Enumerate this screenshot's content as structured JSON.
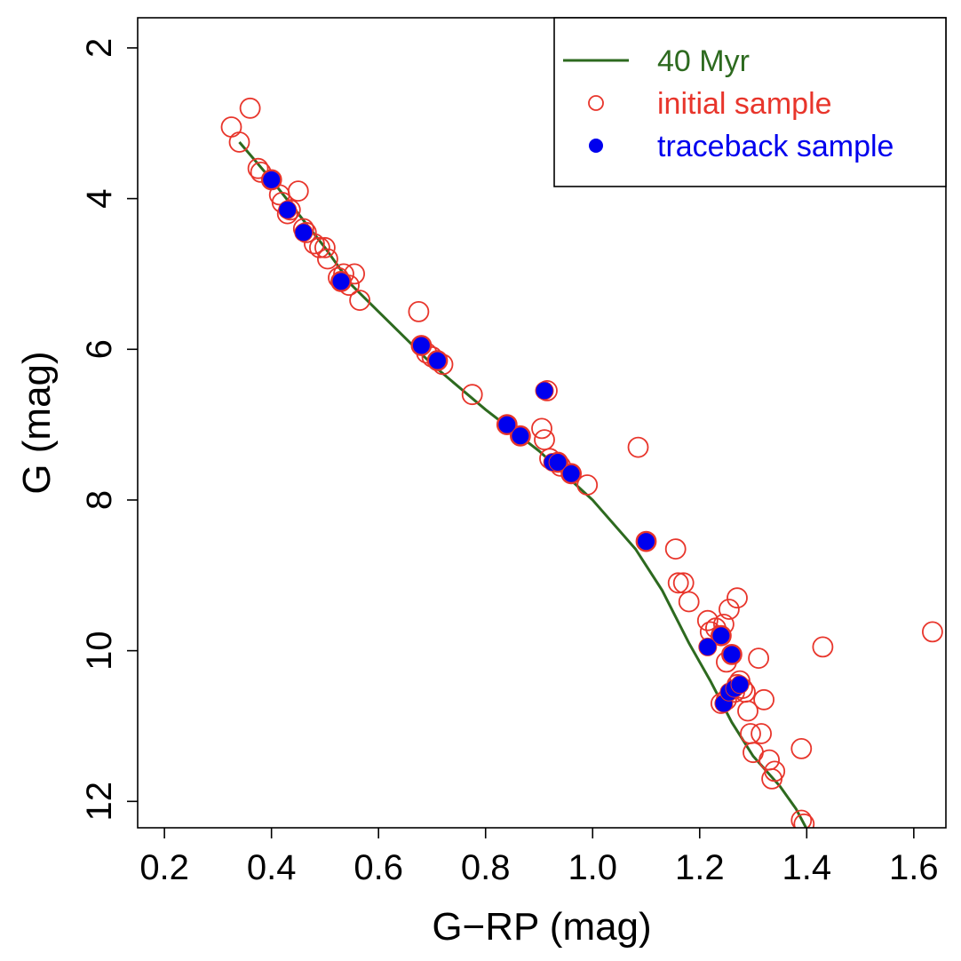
{
  "chart_data": {
    "type": "scatter",
    "xlabel": "G−RP (mag)",
    "ylabel": "G (mag)",
    "xlim": [
      0.15,
      1.66
    ],
    "ylim": [
      12.35,
      1.6
    ],
    "y_inverted": true,
    "xticks": [
      "0.2",
      "0.4",
      "0.6",
      "0.8",
      "1.0",
      "1.2",
      "1.4",
      "1.6"
    ],
    "yticks": [
      "2",
      "4",
      "6",
      "8",
      "10",
      "12"
    ],
    "grid": false,
    "legend": {
      "position": "top-right",
      "entries": [
        {
          "label": "40 Myr",
          "marker": "line",
          "color": "#2d6a1f"
        },
        {
          "label": "initial sample",
          "marker": "open-circle",
          "color": "#e8352b"
        },
        {
          "label": "traceback sample",
          "marker": "filled-circle",
          "color": "#0000ee"
        }
      ]
    },
    "series": [
      {
        "name": "40 Myr",
        "kind": "line",
        "color": "#2d6a1f",
        "points": [
          [
            0.34,
            3.25
          ],
          [
            0.4,
            3.75
          ],
          [
            0.45,
            4.2
          ],
          [
            0.5,
            4.65
          ],
          [
            0.55,
            5.15
          ],
          [
            0.6,
            5.5
          ],
          [
            0.7,
            6.2
          ],
          [
            0.8,
            6.8
          ],
          [
            0.9,
            7.35
          ],
          [
            1.0,
            8.0
          ],
          [
            1.08,
            8.65
          ],
          [
            1.13,
            9.2
          ],
          [
            1.18,
            9.9
          ],
          [
            1.22,
            10.4
          ],
          [
            1.26,
            10.95
          ],
          [
            1.3,
            11.4
          ],
          [
            1.35,
            11.8
          ],
          [
            1.38,
            12.1
          ],
          [
            1.41,
            12.5
          ]
        ]
      },
      {
        "name": "initial sample",
        "kind": "open-circle",
        "color": "#e8352b",
        "points": [
          [
            0.325,
            3.05
          ],
          [
            0.36,
            2.8
          ],
          [
            0.34,
            3.25
          ],
          [
            0.375,
            3.6
          ],
          [
            0.38,
            3.65
          ],
          [
            0.4,
            3.75
          ],
          [
            0.415,
            3.95
          ],
          [
            0.42,
            4.05
          ],
          [
            0.435,
            4.15
          ],
          [
            0.45,
            3.9
          ],
          [
            0.43,
            4.2
          ],
          [
            0.46,
            4.4
          ],
          [
            0.465,
            4.45
          ],
          [
            0.48,
            4.6
          ],
          [
            0.49,
            4.65
          ],
          [
            0.5,
            4.65
          ],
          [
            0.505,
            4.8
          ],
          [
            0.525,
            5.05
          ],
          [
            0.53,
            5.1
          ],
          [
            0.535,
            5.0
          ],
          [
            0.545,
            5.15
          ],
          [
            0.555,
            5.0
          ],
          [
            0.565,
            5.35
          ],
          [
            0.675,
            5.5
          ],
          [
            0.68,
            5.95
          ],
          [
            0.69,
            6.05
          ],
          [
            0.7,
            6.1
          ],
          [
            0.71,
            6.15
          ],
          [
            0.72,
            6.2
          ],
          [
            0.775,
            6.6
          ],
          [
            0.905,
            7.05
          ],
          [
            0.91,
            7.2
          ],
          [
            0.915,
            6.55
          ],
          [
            0.84,
            7.0
          ],
          [
            0.865,
            7.15
          ],
          [
            0.92,
            7.45
          ],
          [
            0.935,
            7.5
          ],
          [
            0.94,
            7.55
          ],
          [
            0.96,
            7.65
          ],
          [
            0.99,
            7.8
          ],
          [
            1.085,
            7.3
          ],
          [
            1.1,
            8.55
          ],
          [
            1.155,
            8.65
          ],
          [
            1.16,
            9.1
          ],
          [
            1.17,
            9.1
          ],
          [
            1.18,
            9.35
          ],
          [
            1.215,
            9.6
          ],
          [
            1.22,
            9.75
          ],
          [
            1.23,
            9.7
          ],
          [
            1.24,
            9.8
          ],
          [
            1.245,
            9.65
          ],
          [
            1.255,
            9.45
          ],
          [
            1.27,
            9.3
          ],
          [
            1.25,
            10.15
          ],
          [
            1.26,
            10.05
          ],
          [
            1.265,
            10.55
          ],
          [
            1.27,
            10.45
          ],
          [
            1.275,
            10.4
          ],
          [
            1.28,
            10.5
          ],
          [
            1.285,
            10.55
          ],
          [
            1.29,
            10.8
          ],
          [
            1.295,
            11.1
          ],
          [
            1.3,
            11.35
          ],
          [
            1.31,
            10.1
          ],
          [
            1.315,
            11.1
          ],
          [
            1.32,
            10.65
          ],
          [
            1.33,
            11.45
          ],
          [
            1.335,
            11.7
          ],
          [
            1.34,
            11.6
          ],
          [
            1.39,
            11.3
          ],
          [
            1.39,
            12.25
          ],
          [
            1.395,
            12.3
          ],
          [
            1.43,
            9.95
          ],
          [
            1.635,
            9.75
          ],
          [
            1.24,
            10.7
          ],
          [
            1.25,
            10.65
          ]
        ]
      },
      {
        "name": "traceback sample",
        "kind": "filled-circle",
        "color": "#0000ee",
        "points": [
          [
            0.4,
            3.75
          ],
          [
            0.43,
            4.15
          ],
          [
            0.46,
            4.45
          ],
          [
            0.53,
            5.1
          ],
          [
            0.68,
            5.95
          ],
          [
            0.71,
            6.15
          ],
          [
            0.91,
            6.55
          ],
          [
            0.84,
            7.0
          ],
          [
            0.865,
            7.15
          ],
          [
            0.925,
            7.5
          ],
          [
            0.935,
            7.5
          ],
          [
            0.96,
            7.65
          ],
          [
            1.1,
            8.55
          ],
          [
            1.215,
            9.95
          ],
          [
            1.24,
            9.8
          ],
          [
            1.26,
            10.05
          ],
          [
            1.245,
            10.7
          ],
          [
            1.255,
            10.55
          ],
          [
            1.265,
            10.5
          ],
          [
            1.275,
            10.45
          ]
        ]
      }
    ]
  }
}
